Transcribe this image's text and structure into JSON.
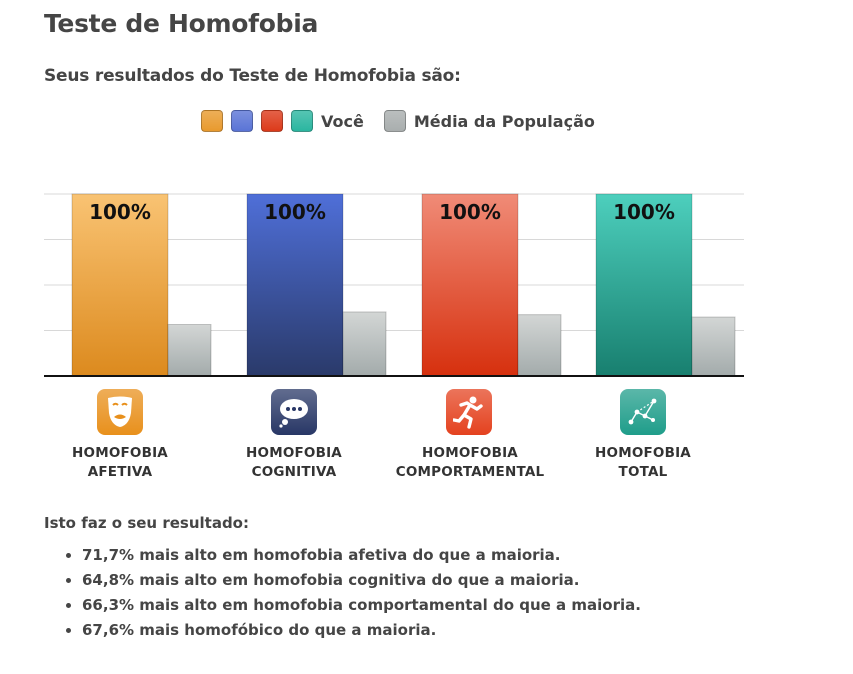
{
  "page": {
    "title": "Teste de Homofobia",
    "subtitle": "Seus resultados do Teste de Homofobia são:"
  },
  "legend": {
    "you_label": "Você",
    "avg_label": "Média da População",
    "you_colors": [
      "#e89a2e",
      "#5a74d6",
      "#dc3a1a",
      "#2bb6a0"
    ],
    "avg_color": "#a9aeae"
  },
  "categories": [
    {
      "line1": "HOMOFOBIA",
      "line2": "AFETIVA",
      "icon": "theater-mask-icon",
      "icon_color": "#e8901c"
    },
    {
      "line1": "HOMOFOBIA",
      "line2": "COGNITIVA",
      "icon": "thought-bubble-icon",
      "icon_color": "#283766"
    },
    {
      "line1": "HOMOFOBIA",
      "line2": "COMPORTAMENTAL",
      "icon": "running-person-icon",
      "icon_color": "#e4421f"
    },
    {
      "line1": "HOMOFOBIA",
      "line2": "TOTAL",
      "icon": "constellation-icon",
      "icon_color": "#1f9d8a"
    }
  ],
  "chart_data": {
    "type": "bar",
    "categories": [
      "HOMOFOBIA AFETIVA",
      "HOMOFOBIA COGNITIVA",
      "HOMOFOBIA COMPORTAMENTAL",
      "HOMOFOBIA TOTAL"
    ],
    "series": [
      {
        "name": "Você",
        "values": [
          100,
          100,
          100,
          100
        ],
        "labels": [
          "100%",
          "100%",
          "100%",
          "100%"
        ]
      },
      {
        "name": "Média da População",
        "values": [
          28.3,
          35.2,
          33.7,
          32.4
        ]
      }
    ],
    "ylim": [
      0,
      100
    ],
    "grid": true,
    "legend_position": "top",
    "colors": {
      "you": [
        [
          "#f9c373",
          "#dc8a1e"
        ],
        [
          "#4f6fd8",
          "#2a3a6a"
        ],
        [
          "#f08b77",
          "#d6300e"
        ],
        [
          "#4dcfbd",
          "#187f6f"
        ]
      ],
      "avg": [
        "#d3d6d5",
        "#a3abab"
      ]
    }
  },
  "results": {
    "heading": "Isto faz o seu resultado:",
    "items": [
      "71,7% mais alto em homofobia afetiva do que a maioria.",
      "64,8% mais alto em homofobia cognitiva do que a maioria.",
      "66,3% mais alto em homofobia comportamental do que a maioria.",
      "67,6% mais homofóbico do que a maioria."
    ]
  }
}
